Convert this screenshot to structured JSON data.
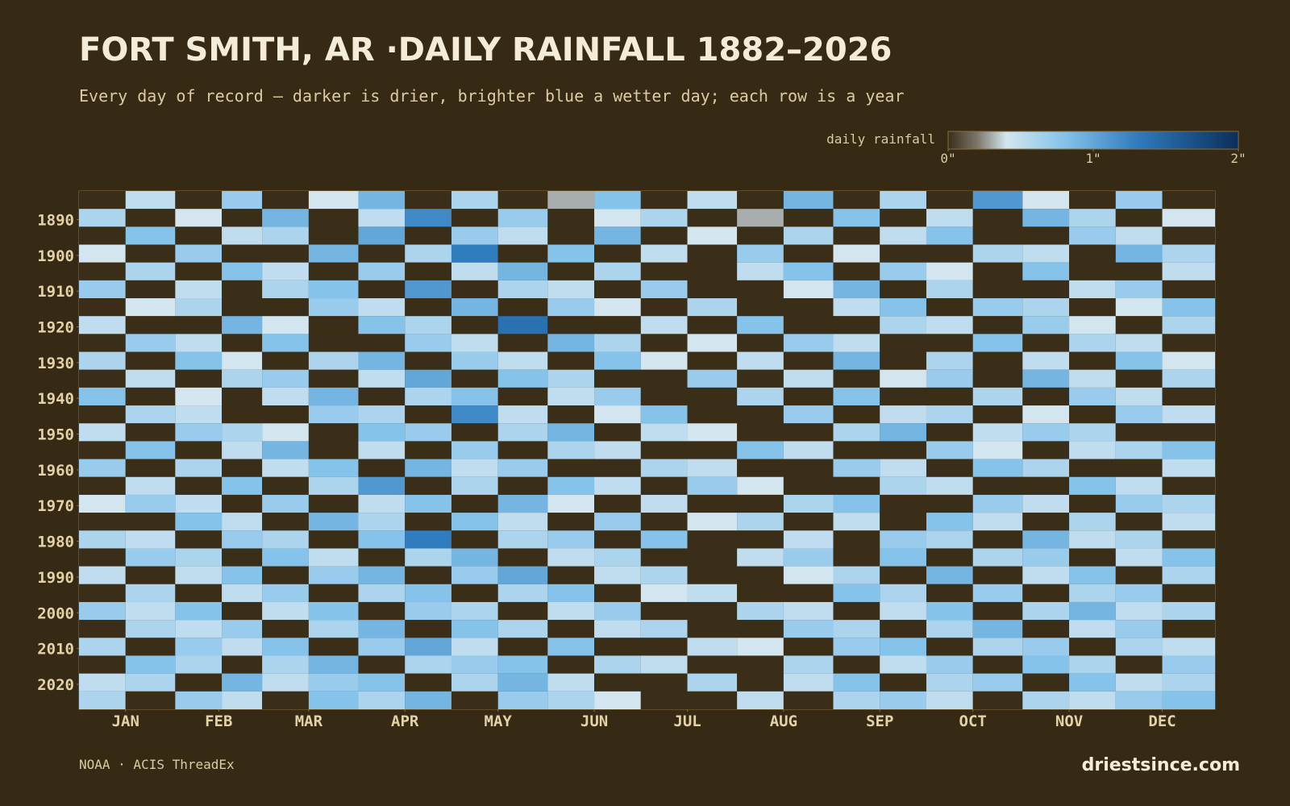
{
  "chart_data": {
    "type": "heatmap",
    "title": "FORT SMITH, AR ·DAILY RAINFALL 1882–2026",
    "subtitle": "Every day of record — darker is drier, brighter blue a wetter day; each row is a year",
    "source": "NOAA · ACIS ThreadEx",
    "brand": "driestsince.com",
    "colorbar": {
      "label": "daily rainfall",
      "ticks": [
        {
          "value": 0,
          "label": "0\""
        },
        {
          "value": 1,
          "label": "1\""
        },
        {
          "value": 2,
          "label": "2\""
        }
      ]
    },
    "zlim": [
      0,
      2
    ],
    "colorscale": [
      [
        0,
        "#3a2e18"
      ],
      [
        0.2,
        "#7c766a"
      ],
      [
        0.4,
        "#d3e6f0"
      ],
      [
        0.8,
        "#85c3ea"
      ],
      [
        1.3,
        "#2f7cbf"
      ],
      [
        2,
        "#0b2e5a"
      ]
    ],
    "xlim": [
      1,
      367
    ],
    "xticks": [
      {
        "value": 16,
        "label": "JAN"
      },
      {
        "value": 46,
        "label": "FEB"
      },
      {
        "value": 75,
        "label": "MAR"
      },
      {
        "value": 106,
        "label": "APR"
      },
      {
        "value": 136,
        "label": "MAY"
      },
      {
        "value": 167,
        "label": "JUN"
      },
      {
        "value": 197,
        "label": "JUL"
      },
      {
        "value": 228,
        "label": "AUG"
      },
      {
        "value": 259,
        "label": "SEP"
      },
      {
        "value": 289,
        "label": "OCT"
      },
      {
        "value": 320,
        "label": "NOV"
      },
      {
        "value": 350,
        "label": "DEC"
      }
    ],
    "ylim": [
      1882,
      2027
    ],
    "yticks": [
      1890,
      1900,
      1910,
      1920,
      1930,
      1940,
      1950,
      1960,
      1970,
      1980,
      1990,
      2000,
      2010,
      2020
    ],
    "x": [
      1,
      16,
      32,
      47,
      60,
      75,
      91,
      106,
      121,
      136,
      152,
      167,
      182,
      197,
      213,
      228,
      244,
      259,
      274,
      289,
      305,
      320,
      335,
      350
    ],
    "y": [
      1882,
      1887,
      1892,
      1897,
      1902,
      1907,
      1912,
      1917,
      1922,
      1927,
      1932,
      1937,
      1942,
      1947,
      1952,
      1957,
      1962,
      1967,
      1972,
      1977,
      1982,
      1987,
      1992,
      1997,
      2002,
      2007,
      2012,
      2017,
      2022
    ],
    "values": [
      [
        0,
        0.5,
        0,
        0.7,
        0,
        0.4,
        0.9,
        0,
        0.6,
        0,
        0.3,
        0.8,
        0,
        0.5,
        0,
        0.9,
        0,
        0.6,
        0,
        1.1,
        0.4,
        0,
        0.7,
        0
      ],
      [
        0.6,
        0,
        0.4,
        0,
        0.9,
        0,
        0.5,
        1.2,
        0,
        0.7,
        0,
        0.4,
        0.6,
        0,
        0.3,
        0,
        0.8,
        0,
        0.5,
        0,
        0.9,
        0.6,
        0,
        0.4
      ],
      [
        0,
        0.8,
        0,
        0.5,
        0.6,
        0,
        1.0,
        0,
        0.7,
        0.5,
        0,
        0.9,
        0,
        0.4,
        0,
        0.6,
        0,
        0.5,
        0.8,
        0,
        0,
        0.7,
        0.5,
        0
      ],
      [
        0.4,
        0,
        0.7,
        0,
        0,
        0.9,
        0,
        0.6,
        1.3,
        0,
        0.8,
        0,
        0.5,
        0,
        0.7,
        0,
        0.4,
        0,
        0,
        0.6,
        0.5,
        0,
        0.9,
        0.6
      ],
      [
        0,
        0.6,
        0,
        0.8,
        0.5,
        0,
        0.7,
        0,
        0.5,
        0.9,
        0,
        0.6,
        0,
        0,
        0.5,
        0.8,
        0,
        0.7,
        0.4,
        0,
        0.8,
        0,
        0,
        0.5
      ],
      [
        0.7,
        0,
        0.5,
        0,
        0.6,
        0.8,
        0,
        1.1,
        0,
        0.6,
        0.5,
        0,
        0.7,
        0,
        0,
        0.4,
        0.9,
        0,
        0.6,
        0,
        0,
        0.5,
        0.7,
        0
      ],
      [
        0,
        0.4,
        0.6,
        0,
        0,
        0.7,
        0.5,
        0,
        0.9,
        0,
        0.7,
        0.4,
        0,
        0.6,
        0,
        0,
        0.5,
        0.8,
        0,
        0.7,
        0.6,
        0,
        0.4,
        0.8
      ],
      [
        0.5,
        0,
        0,
        0.9,
        0.4,
        0,
        0.8,
        0.6,
        0,
        1.4,
        0,
        0,
        0.5,
        0,
        0.8,
        0,
        0,
        0.6,
        0.5,
        0,
        0.7,
        0.4,
        0,
        0.6
      ],
      [
        0,
        0.7,
        0.5,
        0,
        0.8,
        0,
        0,
        0.7,
        0.5,
        0,
        0.9,
        0.6,
        0,
        0.4,
        0,
        0.7,
        0.5,
        0,
        0,
        0.8,
        0,
        0.6,
        0.5,
        0
      ],
      [
        0.6,
        0,
        0.8,
        0.4,
        0,
        0.6,
        0.9,
        0,
        0.7,
        0.5,
        0,
        0.8,
        0.4,
        0,
        0.5,
        0,
        0.9,
        0,
        0.6,
        0,
        0.5,
        0,
        0.8,
        0.4
      ],
      [
        0,
        0.5,
        0,
        0.6,
        0.7,
        0,
        0.5,
        1.0,
        0,
        0.8,
        0.6,
        0,
        0,
        0.7,
        0,
        0.5,
        0,
        0.4,
        0.7,
        0,
        0.9,
        0.5,
        0,
        0.6
      ],
      [
        0.8,
        0,
        0.4,
        0,
        0.5,
        0.9,
        0,
        0.6,
        0.8,
        0,
        0.5,
        0.7,
        0,
        0,
        0.6,
        0,
        0.8,
        0,
        0,
        0.6,
        0,
        0.7,
        0.5,
        0
      ],
      [
        0,
        0.6,
        0.5,
        0,
        0,
        0.7,
        0.6,
        0,
        1.2,
        0.5,
        0,
        0.4,
        0.8,
        0,
        0,
        0.7,
        0,
        0.5,
        0.6,
        0,
        0.4,
        0,
        0.7,
        0.5
      ],
      [
        0.5,
        0,
        0.7,
        0.6,
        0.4,
        0,
        0.8,
        0.7,
        0,
        0.6,
        0.9,
        0,
        0.5,
        0.4,
        0,
        0,
        0.6,
        0.9,
        0,
        0.5,
        0.7,
        0.6,
        0,
        0
      ],
      [
        0,
        0.8,
        0,
        0.5,
        0.9,
        0,
        0.5,
        0,
        0.7,
        0,
        0.6,
        0.5,
        0,
        0,
        0.8,
        0.5,
        0,
        0,
        0.7,
        0.4,
        0,
        0.5,
        0.6,
        0.8
      ],
      [
        0.7,
        0,
        0.6,
        0,
        0.5,
        0.8,
        0,
        0.9,
        0.5,
        0.7,
        0,
        0,
        0.6,
        0.5,
        0,
        0,
        0.7,
        0.5,
        0,
        0.8,
        0.6,
        0,
        0,
        0.5
      ],
      [
        0,
        0.5,
        0,
        0.8,
        0,
        0.6,
        1.1,
        0,
        0.6,
        0,
        0.8,
        0.5,
        0,
        0.7,
        0.4,
        0,
        0,
        0.6,
        0.5,
        0,
        0,
        0.8,
        0.5,
        0
      ],
      [
        0.4,
        0.7,
        0.5,
        0,
        0.7,
        0,
        0.5,
        0.8,
        0,
        0.9,
        0.4,
        0,
        0.5,
        0,
        0,
        0.6,
        0.8,
        0,
        0,
        0.7,
        0.5,
        0,
        0.7,
        0.6
      ],
      [
        0,
        0,
        0.8,
        0.5,
        0,
        0.9,
        0.6,
        0,
        0.8,
        0.5,
        0,
        0.7,
        0,
        0.4,
        0.6,
        0,
        0.5,
        0,
        0.8,
        0.5,
        0,
        0.6,
        0,
        0.5
      ],
      [
        0.6,
        0.5,
        0,
        0.7,
        0.6,
        0,
        0.8,
        1.3,
        0,
        0.6,
        0.7,
        0,
        0.8,
        0,
        0,
        0.5,
        0,
        0.7,
        0.6,
        0,
        0.9,
        0.5,
        0.6,
        0
      ],
      [
        0,
        0.7,
        0.6,
        0,
        0.8,
        0.5,
        0,
        0.6,
        0.9,
        0,
        0.5,
        0.6,
        0,
        0,
        0.5,
        0.7,
        0,
        0.8,
        0,
        0.6,
        0.7,
        0,
        0.5,
        0.8
      ],
      [
        0.5,
        0,
        0.5,
        0.8,
        0,
        0.7,
        0.9,
        0,
        0.7,
        1.0,
        0,
        0.5,
        0.6,
        0,
        0,
        0.4,
        0.6,
        0,
        0.9,
        0,
        0.5,
        0.8,
        0,
        0.6
      ],
      [
        0,
        0.6,
        0,
        0.5,
        0.7,
        0,
        0.6,
        0.8,
        0,
        0.6,
        0.8,
        0,
        0.4,
        0.5,
        0,
        0,
        0.8,
        0.6,
        0,
        0.7,
        0,
        0.6,
        0.7,
        0
      ],
      [
        0.7,
        0.5,
        0.8,
        0,
        0.5,
        0.8,
        0,
        0.7,
        0.6,
        0,
        0.5,
        0.7,
        0,
        0,
        0.6,
        0.5,
        0,
        0.5,
        0.8,
        0,
        0.6,
        0.9,
        0.5,
        0.6
      ],
      [
        0,
        0.6,
        0.5,
        0.7,
        0,
        0.6,
        0.9,
        0,
        0.8,
        0.6,
        0,
        0.5,
        0.6,
        0,
        0,
        0.7,
        0.6,
        0,
        0.6,
        0.9,
        0,
        0.5,
        0.7,
        0
      ],
      [
        0.6,
        0,
        0.7,
        0.5,
        0.8,
        0,
        0.7,
        1.0,
        0.5,
        0,
        0.8,
        0,
        0,
        0.5,
        0.4,
        0,
        0.7,
        0.8,
        0,
        0.6,
        0.7,
        0,
        0.6,
        0.5
      ],
      [
        0,
        0.8,
        0.6,
        0,
        0.6,
        0.9,
        0,
        0.6,
        0.7,
        0.8,
        0,
        0.6,
        0.5,
        0,
        0,
        0.6,
        0,
        0.5,
        0.7,
        0,
        0.8,
        0.6,
        0,
        0.7
      ],
      [
        0.5,
        0.6,
        0,
        0.9,
        0.5,
        0.7,
        0.8,
        0,
        0.6,
        0.9,
        0.5,
        0,
        0,
        0.6,
        0,
        0.5,
        0.8,
        0,
        0.6,
        0.7,
        0,
        0.8,
        0.5,
        0.6
      ],
      [
        0.6,
        0,
        0.7,
        0.5,
        0,
        0.8,
        0.6,
        0.9,
        0,
        0.7,
        0.6,
        0.4,
        0,
        0,
        0.5,
        0,
        0.6,
        0.7,
        0.5,
        0,
        0.6,
        0.5,
        0.7,
        0.8
      ]
    ]
  }
}
